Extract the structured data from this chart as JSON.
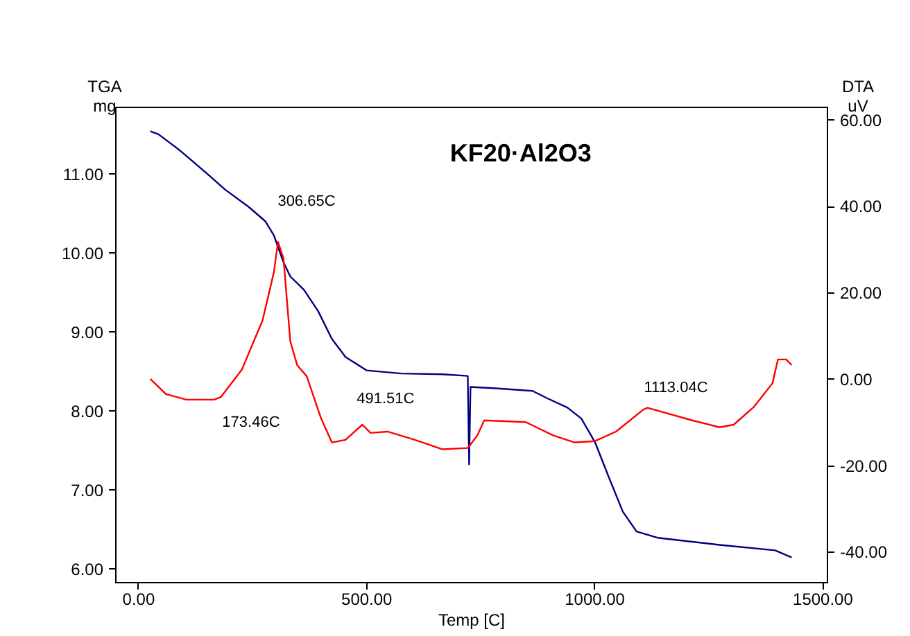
{
  "chart_data": {
    "type": "line",
    "title": "KF20·Al2O3",
    "xlabel": "Temp  [C]",
    "ylabel": "TGA\nmg",
    "y2label": "DTA\nuV",
    "xlim": [
      -50,
      1510
    ],
    "xticks": [
      {
        "value": 0,
        "label": "0.00"
      },
      {
        "value": 500,
        "label": "500.00"
      },
      {
        "value": 1000,
        "label": "1000.00"
      },
      {
        "value": 1500,
        "label": "1500.00"
      }
    ],
    "ylim": [
      5.83,
      11.85
    ],
    "yticks": [
      {
        "value": 6,
        "label": "6.00"
      },
      {
        "value": 7,
        "label": "7.00"
      },
      {
        "value": 8,
        "label": "8.00"
      },
      {
        "value": 9,
        "label": "9.00"
      },
      {
        "value": 10,
        "label": "10.00"
      },
      {
        "value": 11,
        "label": "11.00"
      }
    ],
    "y2lim": [
      -47,
      63
    ],
    "y2ticks": [
      {
        "value": -40,
        "label": "-40.00"
      },
      {
        "value": -20,
        "label": "-20.00"
      },
      {
        "value": 0,
        "label": "0.00"
      },
      {
        "value": 20,
        "label": "20.00"
      },
      {
        "value": 40,
        "label": "40.00"
      },
      {
        "value": 60,
        "label": "60.00"
      }
    ],
    "grid": false,
    "series": [
      {
        "color": "#000080",
        "x": [
          27,
          45,
          91,
          152,
          191,
          243,
          279,
          298,
          319,
          334,
          364,
          395,
          425,
          455,
          501,
          577,
          668,
          723,
          726,
          729,
          790,
          865,
          896,
          941,
          972,
          1002,
          1032,
          1063,
          1093,
          1139,
          1275,
          1397,
          1433
        ],
        "values": [
          11.54,
          11.5,
          11.3,
          11.0,
          10.8,
          10.58,
          10.4,
          10.22,
          9.88,
          9.7,
          9.53,
          9.26,
          8.91,
          8.68,
          8.51,
          8.47,
          8.46,
          8.44,
          7.32,
          8.3,
          8.28,
          8.25,
          8.16,
          8.04,
          7.9,
          7.6,
          7.16,
          6.72,
          6.47,
          6.39,
          6.3,
          6.23,
          6.14
        ]
      },
      {
        "color": "#ff0000",
        "axis": "y2",
        "x": [
          27,
          61,
          106,
          167,
          182,
          228,
          273,
          298,
          307,
          319,
          334,
          349,
          370,
          401,
          425,
          455,
          492,
          510,
          547,
          607,
          668,
          723,
          744,
          759,
          850,
          911,
          957,
          1002,
          1048,
          1108,
          1117,
          1215,
          1275,
          1306,
          1351,
          1391,
          1403,
          1421,
          1433
        ],
        "values": [
          0,
          -3.5,
          -4.8,
          -4.8,
          -4.2,
          2.2,
          13.5,
          24.7,
          31.7,
          27.9,
          8.7,
          3.2,
          0.6,
          -9.0,
          -14.7,
          -14.1,
          -10.6,
          -12.5,
          -12.2,
          -14.1,
          -16.3,
          -16.0,
          -13.1,
          -9.6,
          -10.0,
          -13.1,
          -14.7,
          -14.4,
          -12.2,
          -7.1,
          -6.7,
          -9.6,
          -11.2,
          -10.6,
          -6.4,
          -1.0,
          4.5,
          4.5,
          3.2
        ]
      }
    ],
    "annotations": [
      "306.65C",
      "173.46C",
      "491.51C",
      "1113.04C"
    ]
  }
}
